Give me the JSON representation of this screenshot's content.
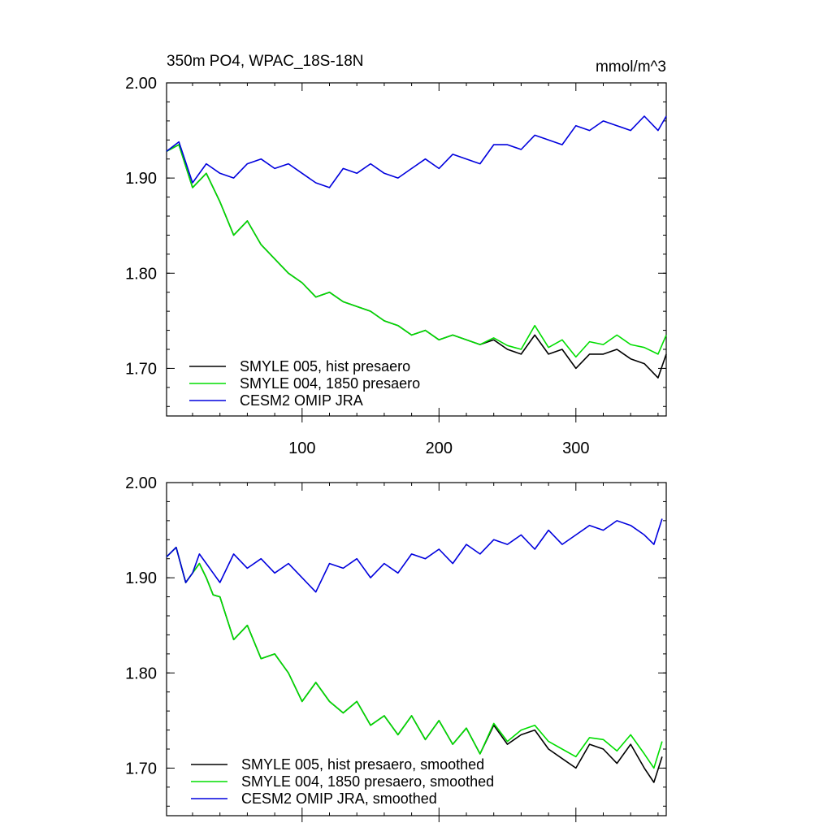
{
  "chart_data": [
    {
      "type": "line",
      "title": "350m PO4, WPAC_18S-18N",
      "units": "mmol/m^3",
      "xlim": [
        1,
        366
      ],
      "ylim": [
        1.65,
        2.0
      ],
      "yticks": [
        "2.00",
        "1.90",
        "1.80",
        "1.70"
      ],
      "xticks": [
        "100",
        "200",
        "300"
      ],
      "legend_position": "bottom-left",
      "series": [
        {
          "name": "SMYLE 005, hist presaero",
          "color": "#000000",
          "x": [
            1,
            10,
            20,
            30,
            40,
            50,
            60,
            70,
            80,
            90,
            100,
            110,
            120,
            130,
            140,
            150,
            160,
            170,
            180,
            190,
            200,
            210,
            220,
            230,
            240,
            250,
            260,
            270,
            280,
            290,
            300,
            310,
            320,
            330,
            340,
            350,
            360,
            366
          ],
          "y": [
            1.928,
            1.935,
            1.89,
            1.905,
            1.875,
            1.84,
            1.855,
            1.83,
            1.815,
            1.8,
            1.79,
            1.775,
            1.78,
            1.77,
            1.765,
            1.76,
            1.75,
            1.745,
            1.735,
            1.74,
            1.73,
            1.735,
            1.73,
            1.725,
            1.73,
            1.72,
            1.715,
            1.735,
            1.715,
            1.72,
            1.7,
            1.715,
            1.715,
            1.72,
            1.71,
            1.705,
            1.69,
            1.715
          ]
        },
        {
          "name": "SMYLE 004, 1850 presaero",
          "color": "#00dd00",
          "x": [
            1,
            10,
            20,
            30,
            40,
            50,
            60,
            70,
            80,
            90,
            100,
            110,
            120,
            130,
            140,
            150,
            160,
            170,
            180,
            190,
            200,
            210,
            220,
            230,
            240,
            250,
            260,
            270,
            280,
            290,
            300,
            310,
            320,
            330,
            340,
            350,
            360,
            366
          ],
          "y": [
            1.928,
            1.935,
            1.89,
            1.905,
            1.875,
            1.84,
            1.855,
            1.83,
            1.815,
            1.8,
            1.79,
            1.775,
            1.78,
            1.77,
            1.765,
            1.76,
            1.75,
            1.745,
            1.735,
            1.74,
            1.73,
            1.735,
            1.73,
            1.725,
            1.732,
            1.724,
            1.72,
            1.745,
            1.722,
            1.73,
            1.712,
            1.728,
            1.725,
            1.735,
            1.725,
            1.722,
            1.715,
            1.735
          ]
        },
        {
          "name": "CESM2 OMIP JRA",
          "color": "#0000dd",
          "x": [
            1,
            10,
            20,
            30,
            40,
            50,
            60,
            70,
            80,
            90,
            100,
            110,
            120,
            130,
            140,
            150,
            160,
            170,
            180,
            190,
            200,
            210,
            220,
            230,
            240,
            250,
            260,
            270,
            280,
            290,
            300,
            310,
            320,
            330,
            340,
            350,
            360,
            366
          ],
          "y": [
            1.928,
            1.938,
            1.895,
            1.915,
            1.905,
            1.9,
            1.915,
            1.92,
            1.91,
            1.915,
            1.905,
            1.895,
            1.89,
            1.91,
            1.905,
            1.915,
            1.905,
            1.9,
            1.91,
            1.92,
            1.91,
            1.925,
            1.92,
            1.915,
            1.935,
            1.935,
            1.93,
            1.945,
            1.94,
            1.935,
            1.955,
            1.95,
            1.96,
            1.955,
            1.95,
            1.965,
            1.95,
            1.965
          ]
        }
      ]
    },
    {
      "type": "line",
      "xlim": [
        1,
        366
      ],
      "ylim": [
        1.65,
        2.0
      ],
      "yticks": [
        "2.00",
        "1.90",
        "1.80",
        "1.70"
      ],
      "legend_position": "bottom-left",
      "series": [
        {
          "name": "SMYLE 005, hist presaero, smoothed",
          "color": "#000000",
          "x": [
            1,
            8,
            15,
            20,
            25,
            30,
            35,
            40,
            50,
            60,
            70,
            80,
            90,
            100,
            110,
            120,
            130,
            140,
            150,
            160,
            170,
            180,
            190,
            200,
            210,
            220,
            230,
            240,
            250,
            260,
            270,
            280,
            290,
            300,
            310,
            320,
            330,
            340,
            350,
            357,
            363
          ],
          "y": [
            1.922,
            1.932,
            1.895,
            1.905,
            1.915,
            1.9,
            1.882,
            1.88,
            1.835,
            1.85,
            1.815,
            1.82,
            1.8,
            1.77,
            1.79,
            1.77,
            1.758,
            1.77,
            1.745,
            1.755,
            1.735,
            1.755,
            1.73,
            1.75,
            1.725,
            1.742,
            1.715,
            1.745,
            1.725,
            1.735,
            1.74,
            1.72,
            1.71,
            1.7,
            1.725,
            1.72,
            1.705,
            1.725,
            1.7,
            1.685,
            1.712
          ]
        },
        {
          "name": "SMYLE 004, 1850 presaero, smoothed",
          "color": "#00dd00",
          "x": [
            1,
            8,
            15,
            20,
            25,
            30,
            35,
            40,
            50,
            60,
            70,
            80,
            90,
            100,
            110,
            120,
            130,
            140,
            150,
            160,
            170,
            180,
            190,
            200,
            210,
            220,
            230,
            240,
            250,
            260,
            270,
            280,
            290,
            300,
            310,
            320,
            330,
            340,
            350,
            357,
            363
          ],
          "y": [
            1.922,
            1.932,
            1.895,
            1.905,
            1.915,
            1.9,
            1.882,
            1.88,
            1.835,
            1.85,
            1.815,
            1.82,
            1.8,
            1.77,
            1.79,
            1.77,
            1.758,
            1.77,
            1.745,
            1.755,
            1.735,
            1.755,
            1.73,
            1.75,
            1.725,
            1.742,
            1.715,
            1.747,
            1.728,
            1.74,
            1.745,
            1.728,
            1.72,
            1.712,
            1.732,
            1.73,
            1.718,
            1.735,
            1.715,
            1.7,
            1.728
          ]
        },
        {
          "name": "CESM2 OMIP JRA, smoothed",
          "color": "#0000dd",
          "x": [
            1,
            8,
            15,
            20,
            25,
            30,
            35,
            40,
            50,
            60,
            70,
            80,
            90,
            100,
            110,
            120,
            130,
            140,
            150,
            160,
            170,
            180,
            190,
            200,
            210,
            220,
            230,
            240,
            250,
            260,
            270,
            280,
            290,
            300,
            310,
            320,
            330,
            340,
            350,
            357,
            363
          ],
          "y": [
            1.922,
            1.932,
            1.895,
            1.905,
            1.925,
            1.915,
            1.905,
            1.895,
            1.925,
            1.91,
            1.92,
            1.905,
            1.915,
            1.9,
            1.885,
            1.915,
            1.91,
            1.92,
            1.9,
            1.915,
            1.905,
            1.925,
            1.92,
            1.93,
            1.915,
            1.935,
            1.925,
            1.94,
            1.935,
            1.945,
            1.93,
            1.95,
            1.935,
            1.945,
            1.955,
            1.95,
            1.96,
            1.955,
            1.945,
            1.935,
            1.962
          ]
        }
      ]
    }
  ]
}
